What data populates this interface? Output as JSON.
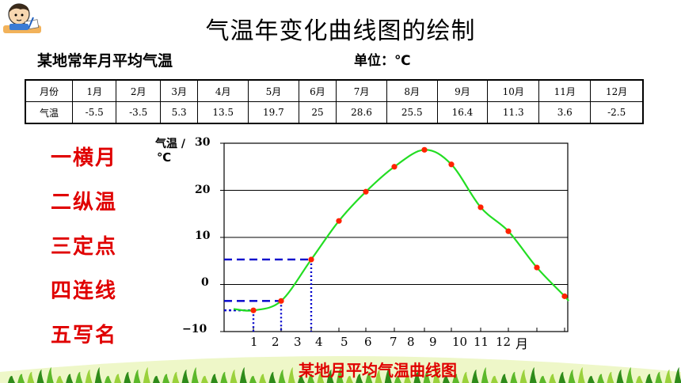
{
  "title": "气温年变化曲线图的绘制",
  "subtitle": "某地常年月平均气温",
  "unit_label": "单位：℃",
  "table": {
    "row1_header": "月份",
    "row2_header": "气温",
    "months": [
      "1月",
      "2月",
      "3月",
      "4月",
      "5月",
      "6月",
      "7月",
      "8月",
      "9月",
      "10月",
      "11月",
      "12月"
    ],
    "temps": [
      "-5.5",
      "-3.5",
      "5.3",
      "13.5",
      "19.7",
      "25",
      "28.6",
      "25.5",
      "16.4",
      "11.3",
      "3.6",
      "-2.5"
    ]
  },
  "steps": [
    "一横月",
    "二纵温",
    "三定点",
    "四连线",
    "五写名"
  ],
  "caption": "某地月平均气温曲线图",
  "colors": {
    "curve": "#22dd22",
    "points": "#ff2200",
    "guides": "#0000cc",
    "steps": "#e00000"
  },
  "chart_data": {
    "type": "line",
    "title": "某地月平均气温曲线图",
    "ylabel_line1": "气温 /",
    "ylabel_line2": "℃",
    "xlabel": "月",
    "x_ticks": [
      "1",
      "2",
      "3",
      "4",
      "5",
      "6",
      "7",
      "8",
      "9",
      "10",
      "11",
      "12"
    ],
    "y_ticks": [
      "30",
      "20",
      "10",
      "0",
      "−10"
    ],
    "ylim": [
      -10,
      30
    ],
    "grid": "horizontal",
    "series": [
      {
        "x": [
          1,
          2,
          3,
          4,
          5,
          6,
          7,
          8,
          9,
          10,
          11,
          12
        ],
        "values": [
          -5.5,
          -3.5,
          5.3,
          13.5,
          19.7,
          25,
          28.6,
          25.5,
          16.4,
          11.3,
          3.6,
          -2.5
        ]
      }
    ],
    "guide_lines": [
      {
        "month": 1,
        "value": -5.5
      },
      {
        "month": 2,
        "value": -3.5
      },
      {
        "month": 3,
        "value": 5.3
      }
    ]
  }
}
